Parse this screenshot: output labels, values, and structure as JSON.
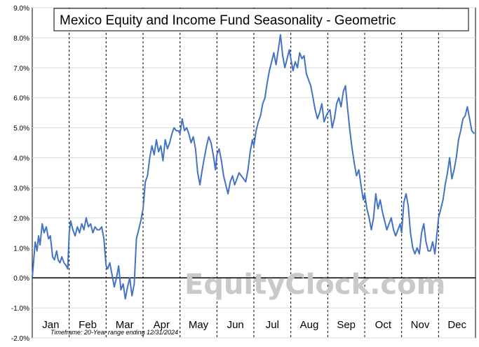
{
  "chart_data": {
    "type": "line",
    "title": "Mexico Equity and Income Fund Seasonality - Geometric",
    "footnote": "Timeframe: 20-Year range ending 12/31/2024",
    "watermark": "EquityClock.com",
    "y_unit": "%",
    "ylim": [
      -2.0,
      9.0
    ],
    "y_ticks": [
      "9.0%",
      "8.0%",
      "7.0%",
      "6.0%",
      "5.0%",
      "4.0%",
      "3.0%",
      "2.0%",
      "1.0%",
      "0.0%",
      "-1.0%",
      "-2.0%"
    ],
    "categories": [
      "Jan",
      "Feb",
      "Mar",
      "Apr",
      "May",
      "Jun",
      "Jul",
      "Aug",
      "Sep",
      "Oct",
      "Nov",
      "Dec"
    ],
    "grid": {
      "vertical": "dashed month separators",
      "horizontal": "light gray"
    },
    "line_color": "#4472c4",
    "series": [
      {
        "x": [
          0,
          0.08,
          0.13,
          0.17,
          0.21,
          0.27,
          0.32,
          0.38,
          0.44,
          0.49,
          0.55,
          0.6,
          0.66,
          0.7,
          0.75,
          0.8,
          0.86,
          0.92,
          0.96,
          1.0,
          1.04,
          1.1,
          1.16,
          1.22,
          1.28,
          1.34,
          1.4,
          1.46,
          1.52,
          1.58,
          1.64,
          1.7,
          1.76,
          1.82,
          1.88,
          1.94,
          2.0,
          2.04,
          2.1,
          2.16,
          2.22,
          2.28,
          2.34,
          2.4,
          2.46,
          2.52,
          2.58,
          2.64,
          2.7,
          2.76,
          2.82,
          2.88,
          2.94,
          3.0,
          3.06,
          3.12,
          3.18,
          3.24,
          3.3,
          3.36,
          3.42,
          3.48,
          3.54,
          3.6,
          3.66,
          3.72,
          3.78,
          3.84,
          3.9,
          3.96,
          4.0,
          4.06,
          4.12,
          4.18,
          4.24,
          4.3,
          4.36,
          4.42,
          4.48,
          4.54,
          4.6,
          4.66,
          4.72,
          4.78,
          4.84,
          4.9,
          4.96,
          5.0,
          5.06,
          5.12,
          5.18,
          5.24,
          5.3,
          5.36,
          5.42,
          5.48,
          5.54,
          5.6,
          5.66,
          5.72,
          5.78,
          5.84,
          5.9,
          5.96,
          6.0,
          6.06,
          6.12,
          6.18,
          6.24,
          6.3,
          6.36,
          6.42,
          6.48,
          6.54,
          6.6,
          6.66,
          6.72,
          6.78,
          6.84,
          6.9,
          6.96,
          7.0,
          7.06,
          7.12,
          7.18,
          7.24,
          7.3,
          7.36,
          7.42,
          7.48,
          7.54,
          7.6,
          7.66,
          7.72,
          7.78,
          7.84,
          7.9,
          7.96,
          8.0,
          8.06,
          8.12,
          8.18,
          8.24,
          8.3,
          8.36,
          8.42,
          8.48,
          8.54,
          8.6,
          8.66,
          8.72,
          8.78,
          8.84,
          8.9,
          8.96,
          9.0,
          9.06,
          9.12,
          9.18,
          9.24,
          9.3,
          9.36,
          9.42,
          9.48,
          9.54,
          9.6,
          9.66,
          9.72,
          9.78,
          9.84,
          9.9,
          9.96,
          10.0,
          10.06,
          10.12,
          10.18,
          10.24,
          10.3,
          10.36,
          10.42,
          10.48,
          10.54,
          10.6,
          10.66,
          10.72,
          10.78,
          10.84,
          10.9,
          10.96,
          11.0,
          11.06,
          11.12,
          11.18,
          11.24,
          11.3,
          11.36,
          11.42,
          11.48,
          11.54,
          11.6,
          11.66,
          11.72,
          11.78,
          11.84,
          11.9,
          11.97
        ],
        "values": [
          0.0,
          1.2,
          0.9,
          1.4,
          1.1,
          1.8,
          1.5,
          1.7,
          1.3,
          1.4,
          0.7,
          0.6,
          0.9,
          0.6,
          0.5,
          0.7,
          0.5,
          0.4,
          0.3,
          1.5,
          1.9,
          1.6,
          1.4,
          1.7,
          1.5,
          1.8,
          1.6,
          2.0,
          1.7,
          1.8,
          1.5,
          1.7,
          1.6,
          1.6,
          1.7,
          1.3,
          0.4,
          0.3,
          0.5,
          0.1,
          -0.3,
          0.0,
          0.4,
          -0.4,
          -0.2,
          -0.7,
          -0.3,
          0.0,
          -0.6,
          -0.2,
          1.3,
          1.6,
          1.9,
          2.3,
          3.2,
          3.4,
          4.0,
          4.4,
          4.1,
          4.6,
          4.2,
          4.4,
          3.9,
          4.6,
          4.3,
          4.5,
          4.8,
          5.0,
          4.9,
          4.9,
          4.8,
          5.3,
          4.9,
          5.0,
          4.8,
          4.5,
          4.7,
          4.3,
          3.5,
          3.1,
          3.6,
          4.0,
          4.4,
          4.7,
          4.5,
          4.1,
          3.6,
          4.1,
          4.3,
          3.9,
          3.4,
          3.1,
          2.8,
          3.2,
          3.4,
          3.1,
          3.3,
          3.5,
          3.4,
          3.3,
          3.2,
          3.6,
          4.2,
          4.6,
          4.4,
          4.9,
          5.2,
          5.4,
          5.8,
          6.0,
          6.5,
          6.9,
          7.2,
          7.5,
          7.1,
          7.6,
          8.1,
          7.4,
          7.0,
          7.3,
          7.6,
          7.3,
          6.9,
          7.2,
          7.0,
          7.5,
          7.3,
          7.4,
          6.8,
          6.6,
          6.4,
          6.0,
          5.6,
          5.3,
          5.5,
          5.8,
          5.2,
          5.4,
          5.5,
          5.6,
          5.0,
          5.3,
          5.8,
          6.0,
          5.7,
          6.2,
          6.4,
          5.6,
          4.9,
          4.3,
          3.8,
          3.4,
          3.6,
          3.1,
          2.6,
          2.8,
          2.3,
          2.0,
          1.6,
          2.0,
          2.8,
          2.3,
          2.6,
          2.2,
          1.9,
          1.6,
          1.8,
          2.0,
          1.6,
          1.4,
          1.6,
          1.8,
          1.5,
          2.5,
          2.8,
          2.4,
          1.5,
          1.0,
          0.8,
          1.0,
          0.8,
          1.5,
          1.8,
          1.2,
          0.9,
          0.9,
          1.2,
          0.8,
          1.5,
          2.0,
          2.3,
          2.6,
          3.1,
          3.5,
          4.0,
          3.3,
          3.6,
          4.0,
          4.6,
          4.9,
          5.3,
          5.4,
          5.7,
          5.3,
          4.9,
          4.8
        ]
      }
    ]
  }
}
